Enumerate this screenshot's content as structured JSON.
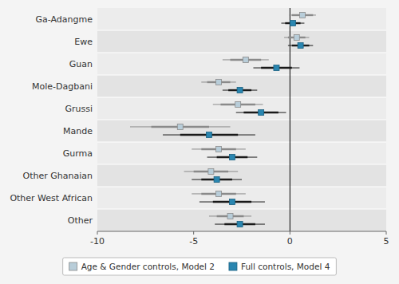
{
  "chart_data": {
    "type": "coefficient",
    "orientation": "horizontal",
    "categories": [
      "Ga-Adangme",
      "Ewe",
      "Guan",
      "Mole-Dagbani",
      "Grussi",
      "Mande",
      "Gurma",
      "Other Ghanaian",
      "Other West African",
      "Other"
    ],
    "series": [
      {
        "name": "Age & Gender controls, Model 2",
        "color": "#b8cdd9",
        "values": [
          0.65,
          0.35,
          -2.3,
          -3.7,
          -2.7,
          -5.7,
          -3.7,
          -4.1,
          -3.7,
          -3.1
        ],
        "ci95_lo": [
          0.1,
          -0.1,
          -3.1,
          -4.3,
          -3.6,
          -7.2,
          -4.6,
          -5.0,
          -4.6,
          -3.8
        ],
        "ci95_hi": [
          1.2,
          0.8,
          -1.5,
          -3.1,
          -1.8,
          -4.2,
          -2.8,
          -3.2,
          -2.8,
          -2.4
        ],
        "ci99_lo": [
          -0.05,
          -0.3,
          -3.5,
          -4.6,
          -4.0,
          -8.3,
          -5.1,
          -5.5,
          -5.1,
          -4.2
        ],
        "ci99_hi": [
          1.35,
          1.0,
          -1.1,
          -2.8,
          -1.4,
          -3.1,
          -2.3,
          -2.7,
          -2.3,
          -2.0
        ]
      },
      {
        "name": "Full controls, Model 4",
        "color": "#2a86b0",
        "values": [
          0.15,
          0.55,
          -0.7,
          -2.6,
          -1.5,
          -4.2,
          -3.0,
          -3.8,
          -3.0,
          -2.6
        ],
        "ci95_lo": [
          -0.25,
          0.1,
          -1.5,
          -3.2,
          -2.4,
          -5.7,
          -3.8,
          -4.6,
          -4.0,
          -3.4
        ],
        "ci95_hi": [
          0.55,
          1.0,
          0.1,
          -2.0,
          -0.6,
          -2.7,
          -2.2,
          -3.0,
          -2.0,
          -1.8
        ],
        "ci99_lo": [
          -0.45,
          -0.1,
          -1.9,
          -3.5,
          -2.8,
          -6.6,
          -4.3,
          -5.1,
          -4.7,
          -3.9
        ],
        "ci99_hi": [
          0.75,
          1.2,
          0.5,
          -1.7,
          -0.2,
          -1.8,
          -1.7,
          -2.5,
          -1.3,
          -1.3
        ]
      }
    ],
    "xlim": [
      -10,
      5
    ],
    "xticks": [
      -10,
      -5,
      0,
      5
    ],
    "marker": "square",
    "legend": "bottom"
  }
}
